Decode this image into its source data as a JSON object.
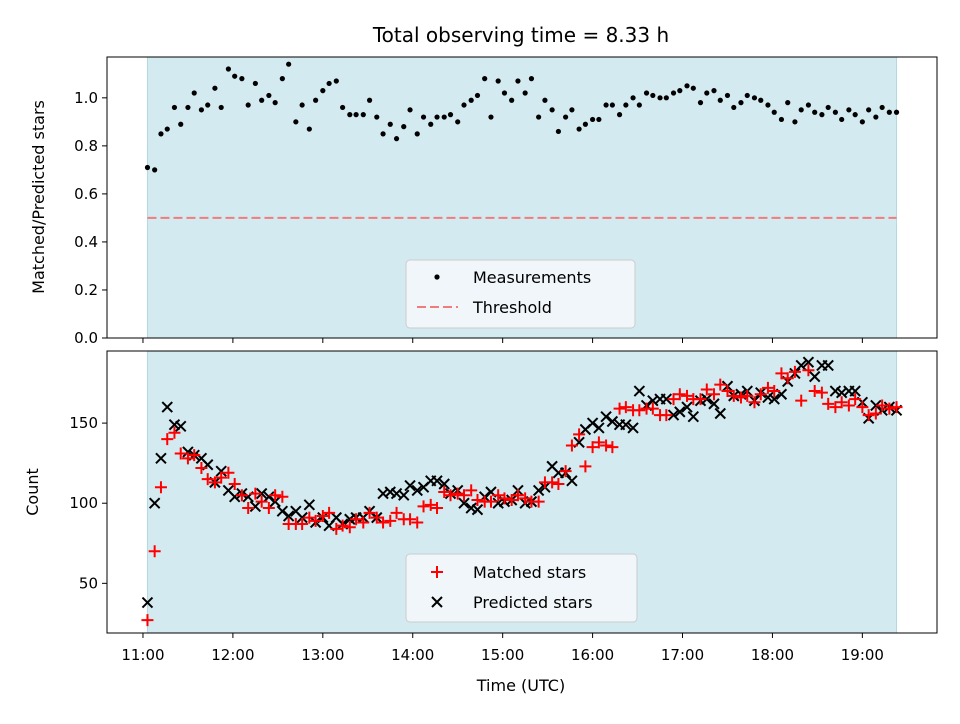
{
  "chart_data": {
    "title": "Total observing time = 8.33 h",
    "xlabel": "Time (UTC)",
    "x_ticks": [
      "11:00",
      "12:00",
      "13:00",
      "14:00",
      "15:00",
      "16:00",
      "17:00",
      "18:00",
      "19:00"
    ],
    "x_tick_hours": [
      11,
      12,
      13,
      14,
      15,
      16,
      17,
      18,
      19
    ],
    "xlim": [
      10.6,
      19.83
    ],
    "observing_window": [
      11.05,
      19.38
    ],
    "colors": {
      "shade": "#d3eaf0",
      "measurements": "#000000",
      "threshold": "#f07c7c",
      "matched": "#ff0000",
      "predicted": "#000000"
    },
    "panels": [
      {
        "type": "scatter",
        "ylabel": "Matched/Predicted stars",
        "ylim": [
          0.0,
          1.17
        ],
        "y_ticks": [
          "0.0",
          "0.2",
          "0.4",
          "0.6",
          "0.8",
          "1.0"
        ],
        "threshold": 0.5,
        "legend_position": "lower-center",
        "legend": [
          {
            "label": "Measurements",
            "marker": "dot"
          },
          {
            "label": "Threshold",
            "marker": "dashed-line"
          }
        ],
        "measurements": {
          "x": [
            11.05,
            11.13,
            11.2,
            11.27,
            11.35,
            11.42,
            11.5,
            11.57,
            11.65,
            11.72,
            11.8,
            11.87,
            11.95,
            12.02,
            12.1,
            12.17,
            12.25,
            12.32,
            12.4,
            12.47,
            12.55,
            12.62,
            12.7,
            12.77,
            12.85,
            12.92,
            13.0,
            13.07,
            13.15,
            13.22,
            13.3,
            13.37,
            13.45,
            13.52,
            13.6,
            13.67,
            13.75,
            13.82,
            13.9,
            13.97,
            14.05,
            14.12,
            14.2,
            14.27,
            14.35,
            14.42,
            14.5,
            14.57,
            14.65,
            14.72,
            14.8,
            14.87,
            14.95,
            15.02,
            15.1,
            15.17,
            15.25,
            15.32,
            15.4,
            15.47,
            15.55,
            15.62,
            15.7,
            15.77,
            15.85,
            15.92,
            16.0,
            16.07,
            16.15,
            16.22,
            16.3,
            16.37,
            16.45,
            16.52,
            16.6,
            16.67,
            16.75,
            16.82,
            16.9,
            16.97,
            17.05,
            17.12,
            17.2,
            17.27,
            17.35,
            17.42,
            17.5,
            17.57,
            17.65,
            17.72,
            17.8,
            17.87,
            17.95,
            18.02,
            18.1,
            18.17,
            18.25,
            18.32,
            18.4,
            18.47,
            18.55,
            18.62,
            18.7,
            18.77,
            18.85,
            18.92,
            19.0,
            19.07,
            19.15,
            19.22,
            19.3,
            19.38
          ],
          "y": [
            0.71,
            0.7,
            0.85,
            0.87,
            0.96,
            0.89,
            0.96,
            1.02,
            0.95,
            0.97,
            1.04,
            0.96,
            1.12,
            1.09,
            1.08,
            0.97,
            1.06,
            0.99,
            1.01,
            0.98,
            1.08,
            1.14,
            0.9,
            0.97,
            0.87,
            0.99,
            1.03,
            1.06,
            1.07,
            0.96,
            0.93,
            0.93,
            0.93,
            0.99,
            0.92,
            0.85,
            0.89,
            0.83,
            0.88,
            0.95,
            0.85,
            0.92,
            0.89,
            0.92,
            0.92,
            0.93,
            0.9,
            0.97,
            0.99,
            1.01,
            1.08,
            0.92,
            1.07,
            1.02,
            0.99,
            1.07,
            1.02,
            1.08,
            0.92,
            0.99,
            0.95,
            0.86,
            0.92,
            0.95,
            0.87,
            0.89,
            0.91,
            0.91,
            0.97,
            0.97,
            0.93,
            0.97,
            1.0,
            0.97,
            1.02,
            1.01,
            1.0,
            1.0,
            1.02,
            1.03,
            1.05,
            1.04,
            0.98,
            1.02,
            1.03,
            0.99,
            1.01,
            0.96,
            0.98,
            1.01,
            1.0,
            0.99,
            0.97,
            0.94,
            0.91,
            0.98,
            0.9,
            0.95,
            0.97,
            0.94,
            0.93,
            0.96,
            0.94,
            0.91,
            0.95,
            0.93,
            0.9,
            0.95,
            0.92,
            0.96,
            0.94,
            0.94
          ]
        }
      },
      {
        "type": "scatter",
        "ylabel": "Count",
        "ylim": [
          19,
          195
        ],
        "y_ticks": [
          "50",
          "100",
          "150"
        ],
        "legend_position": "lower-center",
        "legend": [
          {
            "label": "Matched stars",
            "marker": "plus"
          },
          {
            "label": "Predicted stars",
            "marker": "x"
          }
        ],
        "matched": {
          "x": [
            11.05,
            11.13,
            11.2,
            11.27,
            11.35,
            11.42,
            11.5,
            11.57,
            11.65,
            11.72,
            11.8,
            11.87,
            11.95,
            12.02,
            12.1,
            12.17,
            12.25,
            12.32,
            12.4,
            12.47,
            12.55,
            12.62,
            12.7,
            12.77,
            12.85,
            12.92,
            13.0,
            13.07,
            13.15,
            13.22,
            13.3,
            13.37,
            13.45,
            13.52,
            13.6,
            13.67,
            13.75,
            13.82,
            13.9,
            13.97,
            14.05,
            14.12,
            14.2,
            14.27,
            14.35,
            14.42,
            14.5,
            14.57,
            14.65,
            14.72,
            14.8,
            14.87,
            14.95,
            15.02,
            15.1,
            15.17,
            15.25,
            15.32,
            15.4,
            15.47,
            15.55,
            15.62,
            15.7,
            15.77,
            15.85,
            15.92,
            16.0,
            16.07,
            16.15,
            16.22,
            16.3,
            16.37,
            16.45,
            16.52,
            16.6,
            16.67,
            16.75,
            16.82,
            16.9,
            16.97,
            17.05,
            17.12,
            17.2,
            17.27,
            17.35,
            17.42,
            17.5,
            17.57,
            17.65,
            17.72,
            17.8,
            17.87,
            17.95,
            18.02,
            18.1,
            18.17,
            18.25,
            18.32,
            18.4,
            18.47,
            18.55,
            18.62,
            18.7,
            18.77,
            18.85,
            18.92,
            19.0,
            19.07,
            19.15,
            19.22,
            19.3,
            19.38
          ],
          "y": [
            27,
            70,
            110,
            140,
            144,
            131,
            128,
            130,
            122,
            115,
            113,
            116,
            119,
            112,
            105,
            97,
            106,
            101,
            97,
            105,
            104,
            87,
            87,
            87,
            91,
            89,
            92,
            94,
            84,
            86,
            85,
            90,
            88,
            94,
            91,
            88,
            89,
            94,
            90,
            90,
            88,
            98,
            99,
            97,
            107,
            105,
            106,
            105,
            108,
            102,
            101,
            101,
            105,
            103,
            102,
            105,
            103,
            101,
            101,
            113,
            113,
            112,
            120,
            136,
            143,
            123,
            135,
            138,
            136,
            135,
            159,
            160,
            158,
            158,
            159,
            159,
            155,
            155,
            165,
            168,
            167,
            165,
            165,
            171,
            168,
            174,
            170,
            167,
            166,
            167,
            163,
            168,
            172,
            170,
            181,
            178,
            182,
            164,
            183,
            170,
            169,
            162,
            160,
            163,
            161,
            165,
            160,
            155,
            156,
            161,
            159,
            160
          ]
        },
        "predicted": {
          "x": [
            11.05,
            11.13,
            11.2,
            11.27,
            11.35,
            11.42,
            11.5,
            11.57,
            11.65,
            11.72,
            11.8,
            11.87,
            11.95,
            12.02,
            12.1,
            12.17,
            12.25,
            12.32,
            12.4,
            12.47,
            12.55,
            12.62,
            12.7,
            12.77,
            12.85,
            12.92,
            13.0,
            13.07,
            13.15,
            13.22,
            13.3,
            13.37,
            13.45,
            13.52,
            13.6,
            13.67,
            13.75,
            13.82,
            13.9,
            13.97,
            14.05,
            14.12,
            14.2,
            14.27,
            14.35,
            14.42,
            14.5,
            14.57,
            14.65,
            14.72,
            14.8,
            14.87,
            14.95,
            15.02,
            15.1,
            15.17,
            15.25,
            15.32,
            15.4,
            15.47,
            15.55,
            15.62,
            15.7,
            15.77,
            15.85,
            15.92,
            16.0,
            16.07,
            16.15,
            16.22,
            16.3,
            16.37,
            16.45,
            16.52,
            16.6,
            16.67,
            16.75,
            16.82,
            16.9,
            16.97,
            17.05,
            17.12,
            17.2,
            17.27,
            17.35,
            17.42,
            17.5,
            17.57,
            17.65,
            17.72,
            17.8,
            17.87,
            17.95,
            18.02,
            18.1,
            18.17,
            18.25,
            18.32,
            18.4,
            18.47,
            18.55,
            18.62,
            18.7,
            18.77,
            18.85,
            18.92,
            19.0,
            19.07,
            19.15,
            19.22,
            19.3,
            19.38
          ],
          "y": [
            38,
            100,
            128,
            160,
            149,
            148,
            132,
            130,
            128,
            124,
            113,
            120,
            108,
            104,
            106,
            104,
            98,
            106,
            104,
            101,
            95,
            92,
            95,
            91,
            99,
            88,
            91,
            86,
            91,
            87,
            90,
            91,
            91,
            95,
            91,
            106,
            107,
            106,
            105,
            111,
            108,
            110,
            114,
            114,
            112,
            106,
            108,
            100,
            97,
            96,
            104,
            107,
            100,
            101,
            102,
            108,
            100,
            101,
            108,
            110,
            123,
            119,
            119,
            114,
            138,
            146,
            150,
            147,
            154,
            151,
            149,
            149,
            147,
            170,
            161,
            164,
            165,
            165,
            155,
            157,
            160,
            154,
            164,
            165,
            162,
            156,
            173,
            167,
            168,
            170,
            164,
            169,
            166,
            165,
            168,
            176,
            181,
            186,
            188,
            179,
            186,
            186,
            170,
            169,
            170,
            170,
            163,
            153,
            161,
            158,
            160,
            158
          ]
        }
      }
    ]
  }
}
